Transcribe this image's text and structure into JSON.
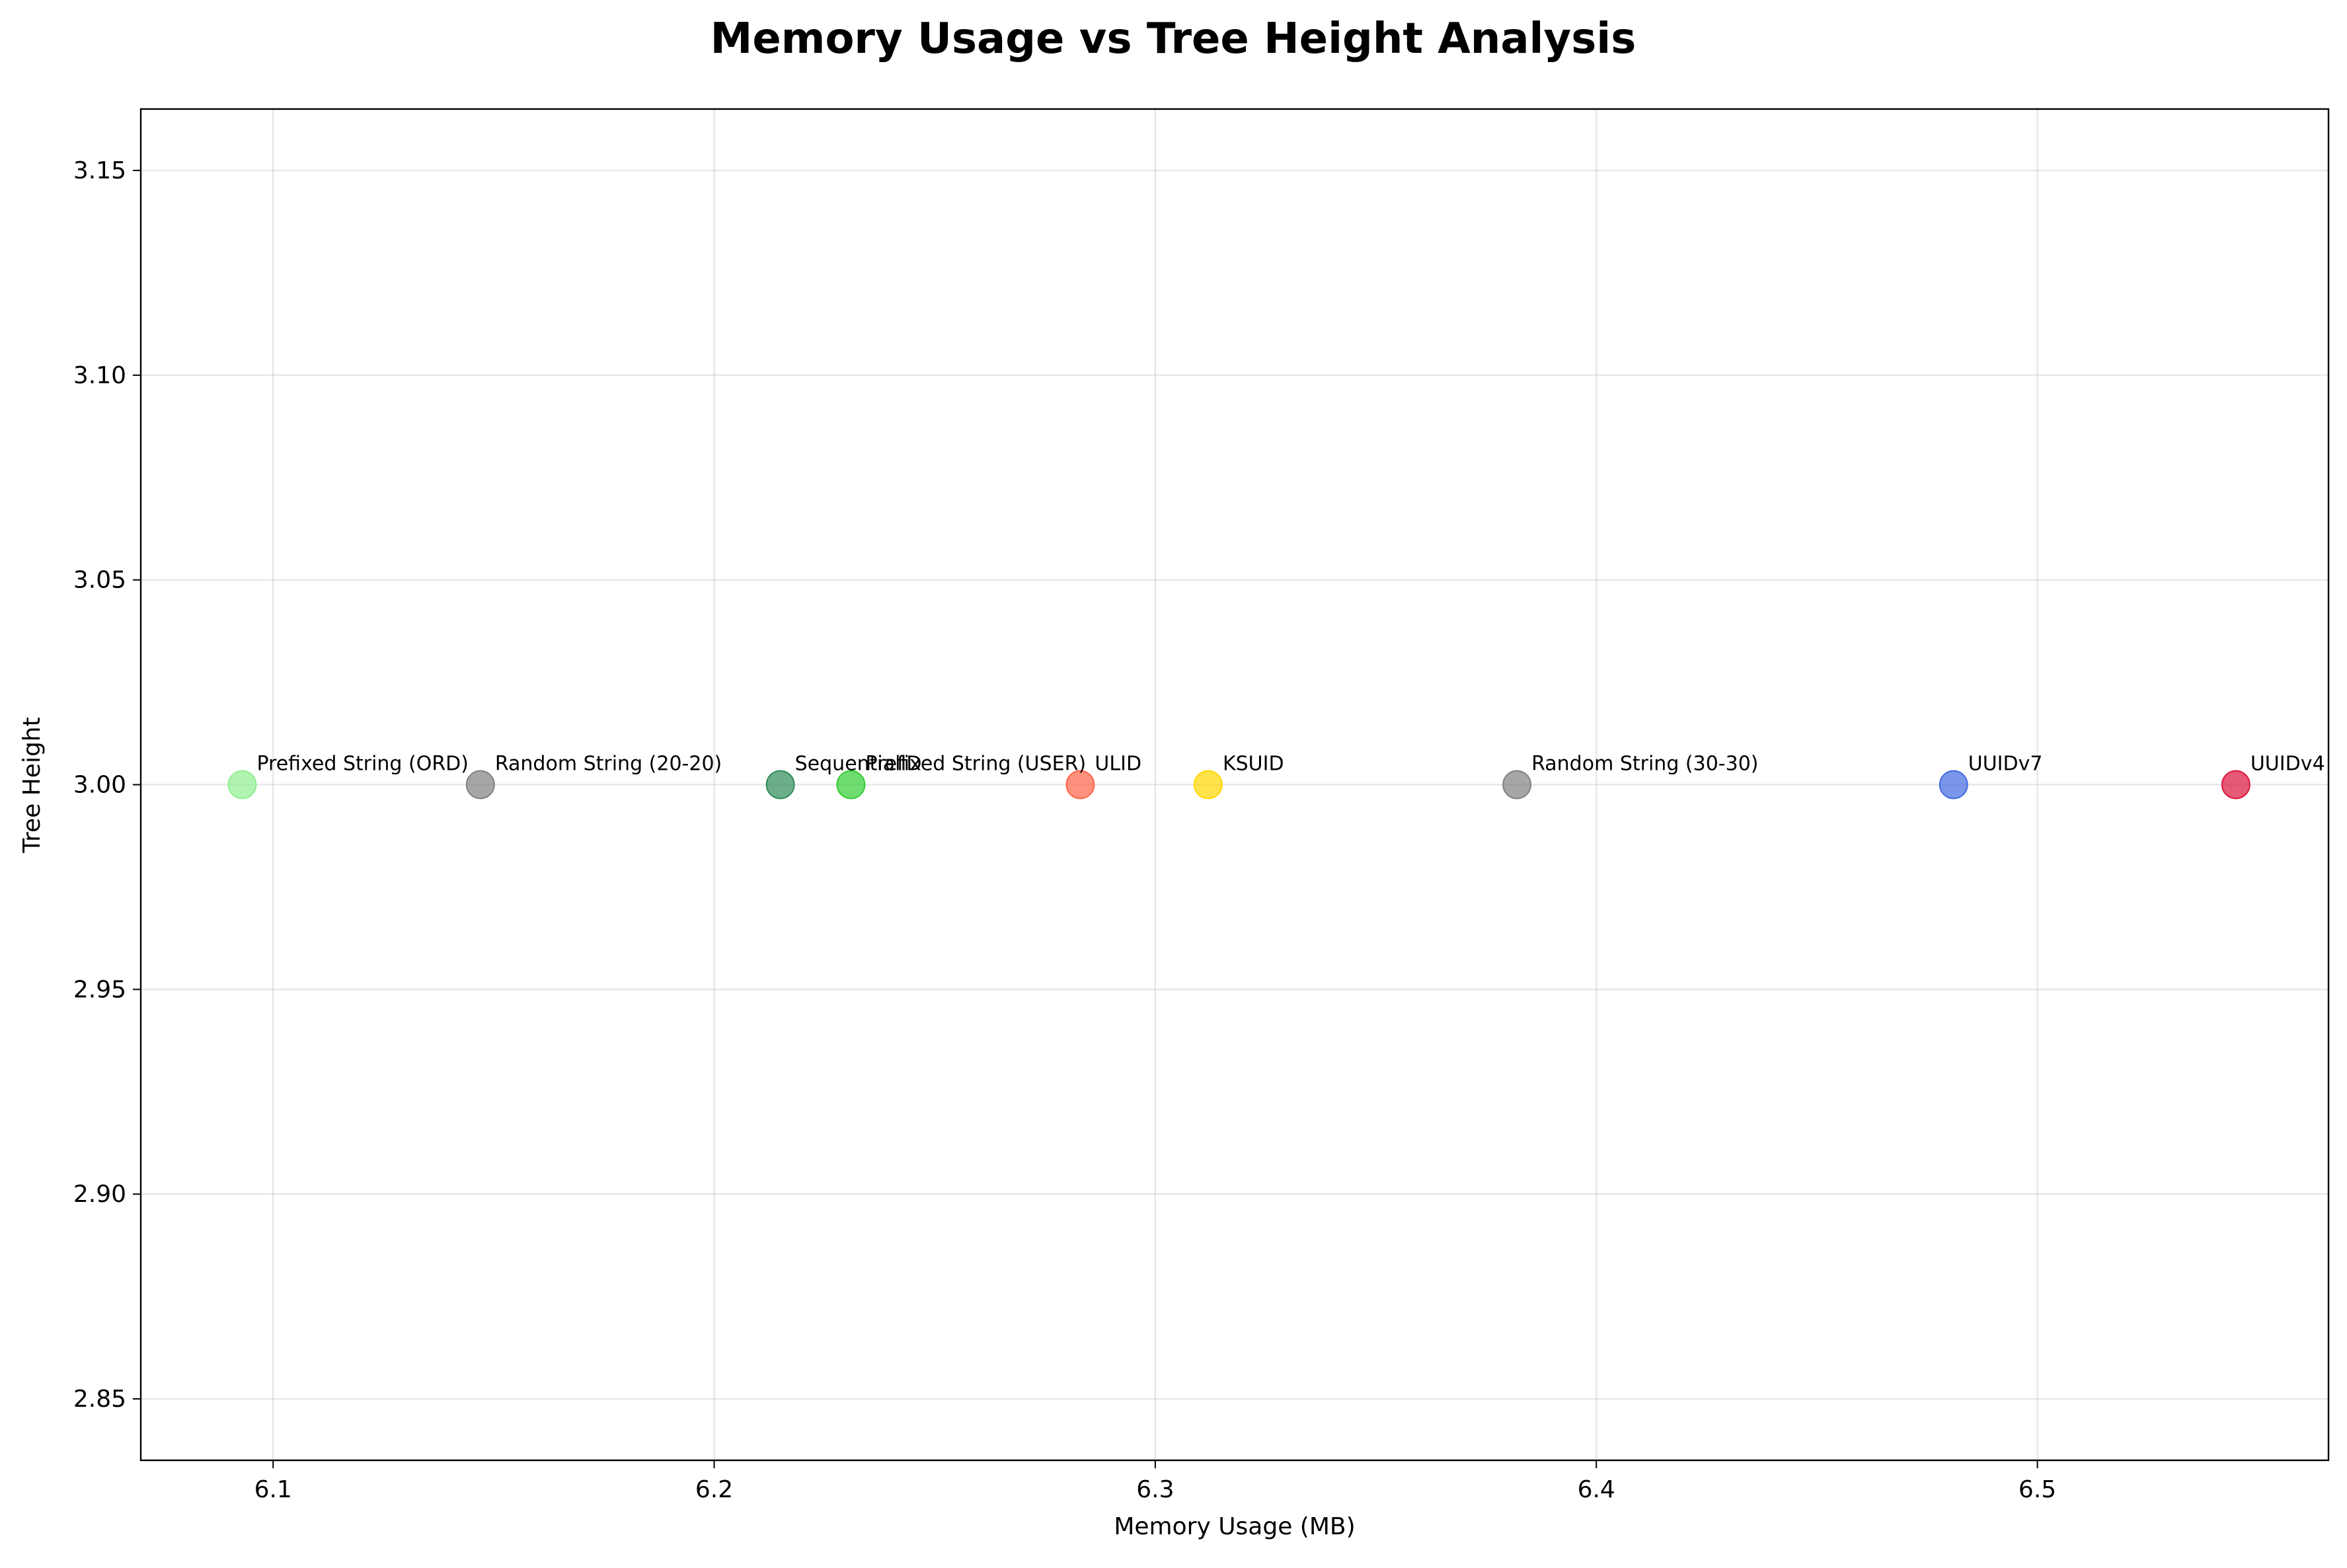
{
  "chart_data": {
    "type": "scatter",
    "title": "Memory Usage vs Tree Height Analysis",
    "xlabel": "Memory Usage (MB)",
    "ylabel": "Tree Height",
    "xlim": [
      6.07,
      6.566
    ],
    "ylim": [
      2.835,
      3.165
    ],
    "xticks": [
      6.1,
      6.2,
      6.3,
      6.4,
      6.5
    ],
    "xtick_labels": [
      "6.1",
      "6.2",
      "6.3",
      "6.4",
      "6.5"
    ],
    "yticks": [
      2.85,
      2.9,
      2.95,
      3.0,
      3.05,
      3.1,
      3.15
    ],
    "ytick_labels": [
      "2.85",
      "2.90",
      "2.95",
      "3.00",
      "3.05",
      "3.10",
      "3.15"
    ],
    "grid": true,
    "points": [
      {
        "label": "Prefixed String (ORD)",
        "x": 6.093,
        "y": 3.0,
        "color": "#90ee90"
      },
      {
        "label": "Random String (20-20)",
        "x": 6.147,
        "y": 3.0,
        "color": "#808080"
      },
      {
        "label": "SequentialID",
        "x": 6.215,
        "y": 3.0,
        "color": "#2e8b57"
      },
      {
        "label": "Prefixed String (USER)",
        "x": 6.231,
        "y": 3.0,
        "color": "#32cd32"
      },
      {
        "label": "ULID",
        "x": 6.283,
        "y": 3.0,
        "color": "#ff6347"
      },
      {
        "label": "KSUID",
        "x": 6.312,
        "y": 3.0,
        "color": "#ffd700"
      },
      {
        "label": "Random String (30-30)",
        "x": 6.382,
        "y": 3.0,
        "color": "#808080"
      },
      {
        "label": "UUIDv7",
        "x": 6.481,
        "y": 3.0,
        "color": "#4169e1"
      },
      {
        "label": "UUIDv4",
        "x": 6.545,
        "y": 3.0,
        "color": "#dc143c"
      }
    ]
  }
}
